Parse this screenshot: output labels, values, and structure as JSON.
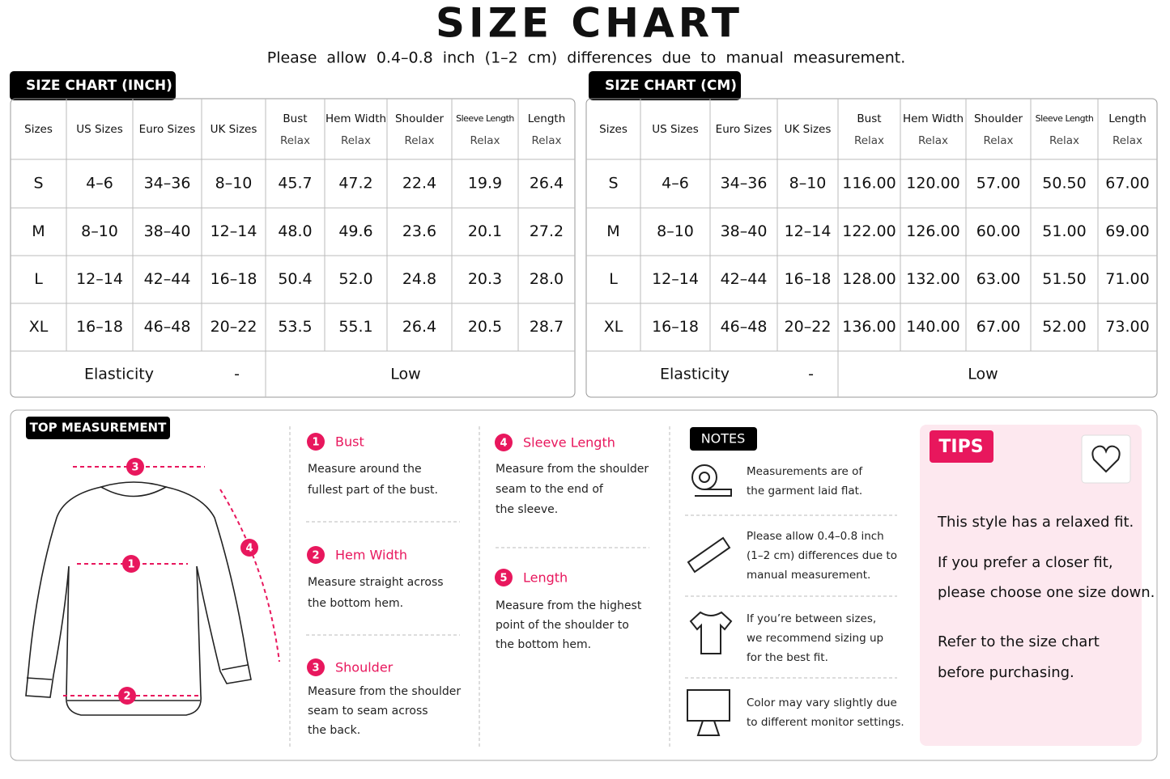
{
  "header": {
    "title": "SIZE CHART",
    "subtitle": "Please allow 0.4–0.8 inch (1–2 cm) differences due to manual measurement."
  },
  "tables": [
    {
      "label": "SIZE CHART (INCH)",
      "headers": [
        [
          "Sizes"
        ],
        [
          "US Sizes"
        ],
        [
          "Euro Sizes"
        ],
        [
          "UK Sizes"
        ],
        [
          "Bust",
          "Relax"
        ],
        [
          "Hem Width",
          "Relax"
        ],
        [
          "Shoulder",
          "Relax"
        ],
        [
          "Sleeve Length",
          "Relax"
        ],
        [
          "Length",
          "Relax"
        ]
      ],
      "rows": [
        [
          "S",
          "4–6",
          "34–36",
          "8–10",
          "45.7",
          "47.2",
          "22.4",
          "19.9",
          "26.4"
        ],
        [
          "M",
          "8–10",
          "38–40",
          "12–14",
          "48.0",
          "49.6",
          "23.6",
          "20.1",
          "27.2"
        ],
        [
          "L",
          "12–14",
          "42–44",
          "16–18",
          "50.4",
          "52.0",
          "24.8",
          "20.3",
          "28.0"
        ],
        [
          "XL",
          "16–18",
          "46–48",
          "20–22",
          "53.5",
          "55.1",
          "26.4",
          "20.5",
          "28.7"
        ]
      ],
      "elasticity": [
        "Elasticity",
        "-",
        "Low"
      ]
    },
    {
      "label": "SIZE CHART (CM)",
      "headers": [
        [
          "Sizes"
        ],
        [
          "US Sizes"
        ],
        [
          "Euro Sizes"
        ],
        [
          "UK Sizes"
        ],
        [
          "Bust",
          "Relax"
        ],
        [
          "Hem Width",
          "Relax"
        ],
        [
          "Shoulder",
          "Relax"
        ],
        [
          "Sleeve Length",
          "Relax"
        ],
        [
          "Length",
          "Relax"
        ]
      ],
      "rows": [
        [
          "S",
          "4–6",
          "34–36",
          "8–10",
          "116.00",
          "120.00",
          "57.00",
          "50.50",
          "67.00"
        ],
        [
          "M",
          "8–10",
          "38–40",
          "12–14",
          "122.00",
          "126.00",
          "60.00",
          "51.00",
          "69.00"
        ],
        [
          "L",
          "12–14",
          "42–44",
          "16–18",
          "128.00",
          "132.00",
          "63.00",
          "51.50",
          "71.00"
        ],
        [
          "XL",
          "16–18",
          "46–48",
          "20–22",
          "136.00",
          "140.00",
          "67.00",
          "52.00",
          "73.00"
        ]
      ],
      "elasticity": [
        "Elasticity",
        "-",
        "Low"
      ]
    }
  ],
  "measurement": {
    "label": "TOP MEASUREMENT",
    "markers": [
      "1",
      "2",
      "3",
      "4"
    ],
    "items": [
      {
        "num": "1",
        "title": "Bust",
        "lines": [
          "Measure around the",
          "fullest part of the bust."
        ]
      },
      {
        "num": "2",
        "title": "Hem Width",
        "lines": [
          "Measure straight across",
          "the bottom hem."
        ]
      },
      {
        "num": "3",
        "title": "Shoulder",
        "lines": [
          "Measure from the shoulder",
          "seam to seam across",
          "the back."
        ]
      },
      {
        "num": "4",
        "title": "Sleeve Length",
        "lines": [
          "Measure from the shoulder",
          "seam to the end of",
          "the sleeve."
        ]
      },
      {
        "num": "5",
        "title": "Length",
        "lines": [
          "Measure from the highest",
          "point of the shoulder to",
          "the bottom hem."
        ]
      }
    ]
  },
  "notes": {
    "label": "NOTES",
    "items": [
      [
        "Measurements are of",
        "the garment laid flat."
      ],
      [
        "Please allow 0.4–0.8 inch",
        "(1–2 cm) differences due to",
        "manual measurement."
      ],
      [
        "If you’re between sizes,",
        "we recommend sizing up",
        "for the best fit."
      ],
      [
        "Color may vary slightly due",
        "to different monitor settings."
      ]
    ]
  },
  "tips": {
    "label": "TIPS",
    "lines": [
      "This style has a relaxed fit.",
      "If you prefer a closer fit,",
      "please choose one size down.",
      "Refer to the size chart",
      "before purchasing."
    ]
  }
}
